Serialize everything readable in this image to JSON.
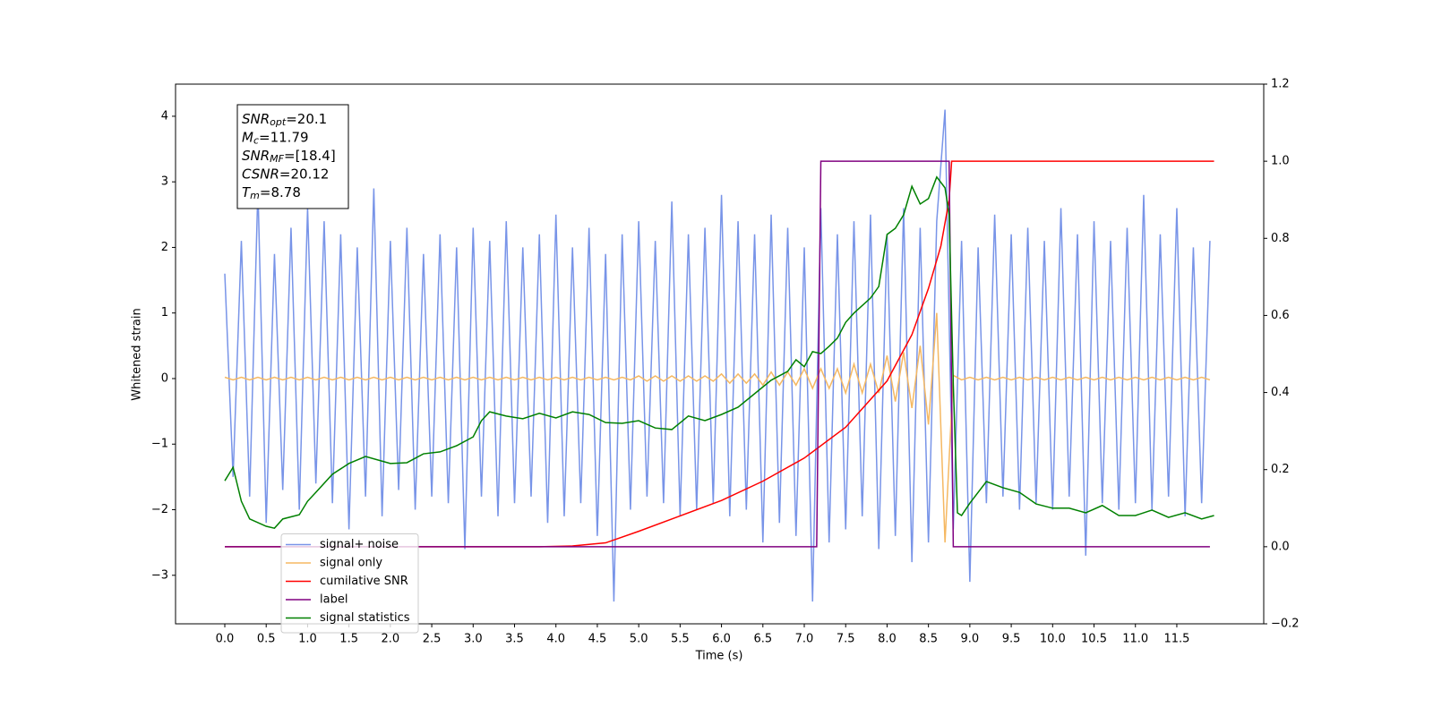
{
  "chart_data": {
    "type": "line",
    "xlabel": "Time (s)",
    "ylabel": "Whitened strain",
    "xlim": [
      -0.595,
      12.55
    ],
    "ylim": [
      -3.74,
      4.49
    ],
    "y2lim": [
      -0.2,
      1.2
    ],
    "xticks": [
      {
        "value": 0,
        "label": "0.0"
      },
      0.5,
      {
        "value": 1,
        "label": "1.0"
      },
      1.5,
      {
        "value": 2,
        "label": "2.0"
      },
      2.5,
      {
        "value": 3,
        "label": "3.0"
      },
      3.5,
      {
        "value": 4,
        "label": "4.0"
      },
      4.5,
      {
        "value": 5,
        "label": "5.0"
      },
      5.5,
      {
        "value": 6,
        "label": "6.0"
      },
      6.5,
      {
        "value": 7,
        "label": "7.0"
      },
      7.5,
      {
        "value": 8,
        "label": "8.0"
      },
      8.5,
      {
        "value": 9,
        "label": "9.0"
      },
      9.5,
      {
        "value": 10,
        "label": "10.0"
      },
      10.5,
      {
        "value": 11,
        "label": "11.0"
      },
      11.5
    ],
    "yticks": [
      {
        "value": -3,
        "label": "−3"
      },
      {
        "value": -2,
        "label": "−2"
      },
      {
        "value": -1,
        "label": "−1"
      },
      0,
      1,
      2,
      3,
      4
    ],
    "y2ticks": [
      {
        "value": -0.2,
        "label": "−0.2"
      },
      {
        "value": 0,
        "label": "0.0"
      },
      0.2,
      0.4,
      0.6,
      0.8,
      {
        "value": 1,
        "label": "1.0"
      },
      1.2
    ],
    "legend": "lower left",
    "x": [
      0,
      0.1,
      0.2,
      0.3,
      0.4,
      0.5,
      0.6,
      0.7,
      0.8,
      0.9,
      1,
      1.1,
      1.2,
      1.3,
      1.4,
      1.5,
      1.6,
      1.7,
      1.8,
      1.9,
      2,
      2.1,
      2.2,
      2.3,
      2.4,
      2.5,
      2.6,
      2.7,
      2.8,
      2.9,
      3,
      3.1,
      3.2,
      3.3,
      3.4,
      3.5,
      3.6,
      3.7,
      3.8,
      3.9,
      4,
      4.1,
      4.2,
      4.3,
      4.4,
      4.5,
      4.6,
      4.7,
      4.8,
      4.9,
      5,
      5.1,
      5.2,
      5.3,
      5.4,
      5.5,
      5.6,
      5.7,
      5.8,
      5.9,
      6,
      6.1,
      6.2,
      6.3,
      6.4,
      6.5,
      6.6,
      6.7,
      6.8,
      6.9,
      7,
      7.1,
      7.2,
      7.3,
      7.4,
      7.5,
      7.6,
      7.7,
      7.8,
      7.9,
      8,
      8.1,
      8.2,
      8.3,
      8.4,
      8.5,
      8.6,
      8.7,
      8.8,
      8.9,
      9,
      9.1,
      9.2,
      9.3,
      9.4,
      9.5,
      9.6,
      9.7,
      9.8,
      9.9,
      10,
      10.1,
      10.2,
      10.3,
      10.4,
      10.5,
      10.6,
      10.7,
      10.8,
      10.9,
      11,
      11.1,
      11.2,
      11.3,
      11.4,
      11.5,
      11.6,
      11.7,
      11.8,
      11.9
    ],
    "series": [
      {
        "name": "signal+ noise",
        "color": "#7894e8",
        "values": [
          1.6,
          -1.5,
          2.1,
          -1.8,
          2.9,
          -2.2,
          1.9,
          -1.7,
          2.3,
          -2.0,
          2.6,
          -1.6,
          2.4,
          -1.9,
          2.2,
          -2.3,
          2.0,
          -1.8,
          2.9,
          -2.1,
          2.1,
          -1.7,
          2.3,
          -2.0,
          1.9,
          -1.8,
          2.2,
          -1.9,
          2.0,
          -2.6,
          2.3,
          -1.8,
          2.1,
          -2.1,
          2.4,
          -1.9,
          2.0,
          -1.8,
          2.2,
          -2.2,
          2.5,
          -2.1,
          2.0,
          -1.9,
          2.3,
          -2.4,
          1.9,
          -3.4,
          2.2,
          -2.0,
          2.4,
          -1.8,
          2.1,
          -1.9,
          2.7,
          -2.1,
          2.2,
          -2.0,
          2.3,
          -1.9,
          2.8,
          -2.1,
          2.4,
          -2.0,
          2.2,
          -2.5,
          2.5,
          -2.2,
          2.3,
          -2.4,
          2.0,
          -3.4,
          2.6,
          -2.5,
          2.2,
          -2.3,
          2.4,
          -2.1,
          2.5,
          -2.6,
          2.2,
          -2.4,
          2.6,
          -2.8,
          2.3,
          -2.5,
          2.4,
          4.1,
          -2.3,
          2.1,
          -3.1,
          2.0,
          -1.9,
          2.5,
          -1.8,
          2.2,
          -2.0,
          2.3,
          -1.9,
          2.1,
          -2.0,
          2.6,
          -1.8,
          2.2,
          -2.7,
          2.4,
          -1.9,
          2.1,
          -2.0,
          2.3,
          -1.9,
          2.8,
          -2.0,
          2.2,
          -1.8,
          2.6,
          -2.1,
          2.0,
          -1.9,
          2.1
        ]
      },
      {
        "name": "signal only",
        "color": "#f5b862",
        "values": [
          0.02,
          -0.02,
          0.02,
          -0.02,
          0.02,
          -0.02,
          0.02,
          -0.02,
          0.02,
          -0.02,
          0.02,
          -0.02,
          0.02,
          -0.02,
          0.02,
          -0.02,
          0.02,
          -0.02,
          0.02,
          -0.02,
          0.02,
          -0.02,
          0.02,
          -0.02,
          0.02,
          -0.02,
          0.02,
          -0.02,
          0.02,
          -0.02,
          0.02,
          -0.02,
          0.02,
          -0.02,
          0.02,
          -0.02,
          0.02,
          -0.02,
          0.02,
          -0.02,
          0.02,
          -0.02,
          0.02,
          -0.02,
          0.02,
          -0.02,
          0.02,
          -0.02,
          0.02,
          -0.02,
          0.04,
          -0.04,
          0.04,
          -0.04,
          0.04,
          -0.04,
          0.04,
          -0.04,
          0.04,
          -0.04,
          0.07,
          -0.07,
          0.07,
          -0.07,
          0.07,
          -0.1,
          0.1,
          -0.1,
          0.1,
          -0.1,
          0.15,
          -0.15,
          0.15,
          -0.15,
          0.15,
          -0.22,
          0.22,
          -0.22,
          0.22,
          -0.22,
          0.35,
          -0.35,
          0.4,
          -0.45,
          0.5,
          -0.7,
          1.0,
          -2.5,
          0.05,
          -0.02,
          0.02,
          -0.02,
          0.02,
          -0.02,
          0.02,
          -0.02,
          0.02,
          -0.02,
          0.02,
          -0.02,
          0.02,
          -0.02,
          0.02,
          -0.02,
          0.02,
          -0.02,
          0.02,
          -0.02,
          0.02,
          -0.02,
          0.02,
          -0.02,
          0.02,
          -0.02,
          0.02,
          -0.02,
          0.02,
          -0.02,
          0.02,
          -0.02
        ]
      },
      {
        "name": "cumilative SNR",
        "color": "#ff0000",
        "axis": "y2",
        "x": [
          0,
          3.8,
          4.2,
          4.6,
          5.0,
          5.5,
          6.0,
          6.5,
          7.0,
          7.5,
          8.0,
          8.3,
          8.5,
          8.65,
          8.75,
          8.78,
          11.95
        ],
        "values": [
          0,
          0,
          0.002,
          0.01,
          0.04,
          0.08,
          0.12,
          0.17,
          0.23,
          0.31,
          0.43,
          0.55,
          0.67,
          0.78,
          0.9,
          1.0,
          1.0
        ]
      },
      {
        "name": "label",
        "color": "#800080",
        "axis": "y2",
        "x": [
          0,
          7.15,
          7.2,
          8.75,
          8.8,
          11.9
        ],
        "values": [
          0,
          0,
          1,
          1,
          0,
          0
        ]
      },
      {
        "name": "signal statistics",
        "color": "#008000",
        "axis": "y2",
        "x": [
          0,
          0.1,
          0.2,
          0.3,
          0.5,
          0.6,
          0.7,
          0.9,
          1.0,
          1.1,
          1.3,
          1.5,
          1.7,
          1.9,
          2.0,
          2.2,
          2.4,
          2.6,
          2.8,
          3.0,
          3.1,
          3.2,
          3.4,
          3.6,
          3.8,
          4.0,
          4.2,
          4.4,
          4.6,
          4.8,
          5.0,
          5.2,
          5.4,
          5.6,
          5.8,
          6.0,
          6.2,
          6.4,
          6.6,
          6.8,
          6.9,
          7.0,
          7.1,
          7.2,
          7.3,
          7.4,
          7.5,
          7.6,
          7.8,
          7.9,
          8.0,
          8.1,
          8.2,
          8.3,
          8.4,
          8.5,
          8.6,
          8.7,
          8.75,
          8.8,
          8.85,
          8.9,
          9.0,
          9.2,
          9.4,
          9.6,
          9.8,
          10.0,
          10.2,
          10.4,
          10.6,
          10.8,
          11.0,
          11.2,
          11.4,
          11.6,
          11.8,
          11.95
        ],
        "values": [
          0.171,
          0.206,
          0.118,
          0.072,
          0.053,
          0.048,
          0.072,
          0.083,
          0.118,
          0.141,
          0.188,
          0.216,
          0.234,
          0.222,
          0.216,
          0.218,
          0.241,
          0.246,
          0.262,
          0.285,
          0.327,
          0.35,
          0.339,
          0.332,
          0.346,
          0.334,
          0.35,
          0.343,
          0.322,
          0.32,
          0.327,
          0.308,
          0.304,
          0.339,
          0.327,
          0.343,
          0.362,
          0.397,
          0.432,
          0.455,
          0.485,
          0.467,
          0.506,
          0.501,
          0.52,
          0.541,
          0.582,
          0.606,
          0.645,
          0.675,
          0.81,
          0.826,
          0.861,
          0.935,
          0.889,
          0.903,
          0.959,
          0.931,
          0.861,
          0.42,
          0.088,
          0.081,
          0.113,
          0.169,
          0.153,
          0.141,
          0.111,
          0.1,
          0.1,
          0.088,
          0.107,
          0.081,
          0.081,
          0.095,
          0.076,
          0.088,
          0.072,
          0.081
        ]
      }
    ],
    "annotation": [
      {
        "var": "SNR",
        "sub": "opt",
        "text": "=20.1"
      },
      {
        "var": "M",
        "sub": "c",
        "text": "=11.79"
      },
      {
        "var": "SNR",
        "sub": "MF",
        "text": "=[18.4]"
      },
      {
        "var": "CSNR",
        "text": "=20.12"
      },
      {
        "var": "T",
        "sub": "m",
        "text": "=8.78"
      }
    ]
  }
}
